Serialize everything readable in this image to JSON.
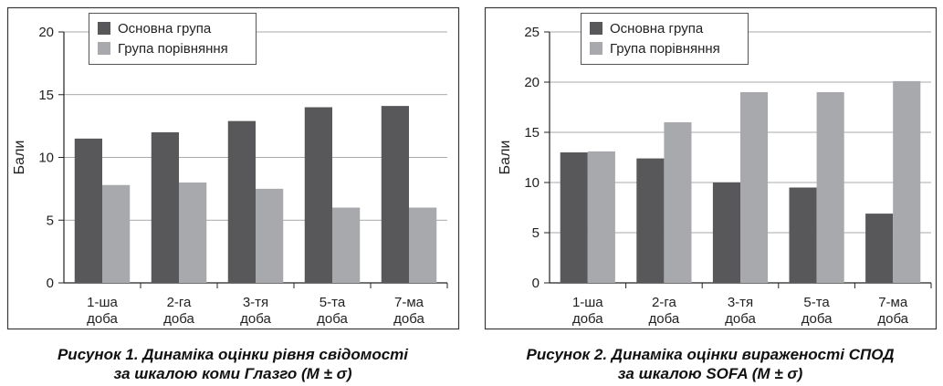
{
  "chart_data": [
    {
      "type": "bar",
      "categories": [
        [
          "1-ша",
          "доба"
        ],
        [
          "2-га",
          "доба"
        ],
        [
          "3-тя",
          "доба"
        ],
        [
          "5-та",
          "доба"
        ],
        [
          "7-ма",
          "доба"
        ]
      ],
      "series": [
        {
          "name": "Основна група",
          "values": [
            11.5,
            12.0,
            12.9,
            14.0,
            14.1
          ],
          "color": "#58585a"
        },
        {
          "name": "Група порівняння",
          "values": [
            7.8,
            8.0,
            7.5,
            6.0,
            6.0
          ],
          "color": "#a7a9ac"
        }
      ],
      "ylabel": "Бали",
      "ylim": [
        0,
        20
      ],
      "yticks": [
        0,
        5,
        10,
        15,
        20
      ],
      "grid": true,
      "legend_position": "top-left",
      "caption": [
        "Рисунок 1.  Динаміка оцінки рівня свідомості",
        "за шкалою коми Глазго (M ± σ)"
      ]
    },
    {
      "type": "bar",
      "categories": [
        [
          "1-ша",
          "доба"
        ],
        [
          "2-га",
          "доба"
        ],
        [
          "3-тя",
          "доба"
        ],
        [
          "5-та",
          "доба"
        ],
        [
          "7-ма",
          "доба"
        ]
      ],
      "series": [
        {
          "name": "Основна група",
          "values": [
            13.0,
            12.4,
            10.0,
            9.5,
            6.9
          ],
          "color": "#58585a"
        },
        {
          "name": "Група порівняння",
          "values": [
            13.1,
            16.0,
            19.0,
            19.0,
            20.1
          ],
          "color": "#a7a9ac"
        }
      ],
      "ylabel": "Бали",
      "ylim": [
        0,
        25
      ],
      "yticks": [
        0,
        5,
        10,
        15,
        20,
        25
      ],
      "grid": true,
      "legend_position": "top-left",
      "caption": [
        "Рисунок 2.  Динаміка оцінки вираженості СПОД",
        "за шкалою SOFA (M ± σ)"
      ]
    }
  ]
}
